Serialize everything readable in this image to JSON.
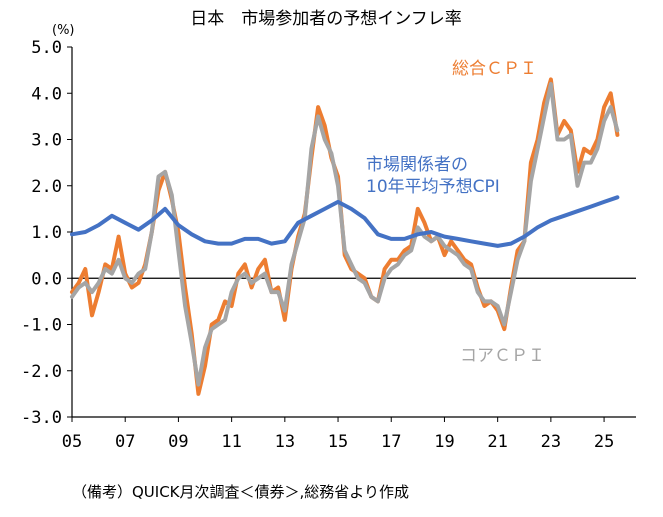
{
  "chart_data": {
    "type": "line",
    "title": "日本　市場参加者の予想インフレ率",
    "unit_label": "(%)",
    "ylim": [
      -3.0,
      5.0
    ],
    "y_ticks": [
      "5.0",
      "4.0",
      "3.0",
      "2.0",
      "1.0",
      "0.0",
      "-1.0",
      "-2.0",
      "-3.0"
    ],
    "x_range": [
      2005,
      2026.2
    ],
    "x_ticks": [
      "05",
      "07",
      "09",
      "11",
      "13",
      "15",
      "17",
      "19",
      "21",
      "23",
      "25"
    ],
    "grid": false,
    "source_note": "（備考）QUICK月次調査＜債券＞,総務省より作成",
    "series": [
      {
        "name": "総合ＣＰＩ",
        "color": "#ED7D31",
        "x": [
          2005.0,
          2005.25,
          2005.5,
          2005.75,
          2006.0,
          2006.25,
          2006.5,
          2006.75,
          2007.0,
          2007.25,
          2007.5,
          2007.75,
          2008.0,
          2008.25,
          2008.5,
          2008.75,
          2009.0,
          2009.25,
          2009.5,
          2009.75,
          2010.0,
          2010.25,
          2010.5,
          2010.75,
          2011.0,
          2011.25,
          2011.5,
          2011.75,
          2012.0,
          2012.25,
          2012.5,
          2012.75,
          2013.0,
          2013.25,
          2013.5,
          2013.75,
          2014.0,
          2014.25,
          2014.5,
          2014.75,
          2015.0,
          2015.25,
          2015.5,
          2015.75,
          2016.0,
          2016.25,
          2016.5,
          2016.75,
          2017.0,
          2017.25,
          2017.5,
          2017.75,
          2018.0,
          2018.25,
          2018.5,
          2018.75,
          2019.0,
          2019.25,
          2019.5,
          2019.75,
          2020.0,
          2020.25,
          2020.5,
          2020.75,
          2021.0,
          2021.25,
          2021.5,
          2021.75,
          2022.0,
          2022.25,
          2022.5,
          2022.75,
          2023.0,
          2023.25,
          2023.5,
          2023.75,
          2024.0,
          2024.25,
          2024.5,
          2024.75,
          2025.0,
          2025.25,
          2025.5
        ],
        "values": [
          -0.3,
          -0.1,
          0.2,
          -0.8,
          -0.3,
          0.3,
          0.2,
          0.9,
          0.1,
          -0.2,
          -0.1,
          0.3,
          1.0,
          1.9,
          2.3,
          1.7,
          1.0,
          -0.2,
          -1.2,
          -2.5,
          -1.9,
          -1.0,
          -0.9,
          -0.5,
          -0.6,
          0.1,
          0.3,
          -0.2,
          0.2,
          0.4,
          -0.3,
          -0.2,
          -0.9,
          0.2,
          0.9,
          1.4,
          2.6,
          3.7,
          3.3,
          2.6,
          2.2,
          0.5,
          0.2,
          0.1,
          0.0,
          -0.4,
          -0.5,
          0.2,
          0.4,
          0.4,
          0.6,
          0.7,
          1.5,
          1.2,
          0.8,
          0.9,
          0.5,
          0.8,
          0.6,
          0.4,
          0.3,
          -0.2,
          -0.6,
          -0.5,
          -0.7,
          -1.1,
          -0.2,
          0.6,
          0.8,
          2.5,
          3.0,
          3.8,
          4.3,
          3.1,
          3.4,
          3.2,
          2.3,
          2.8,
          2.7,
          3.0,
          3.7,
          4.0,
          3.1
        ]
      },
      {
        "name": "コアＣＰＩ",
        "color": "#A5A5A5",
        "x": [
          2005.0,
          2005.25,
          2005.5,
          2005.75,
          2006.0,
          2006.25,
          2006.5,
          2006.75,
          2007.0,
          2007.25,
          2007.5,
          2007.75,
          2008.0,
          2008.25,
          2008.5,
          2008.75,
          2009.0,
          2009.25,
          2009.5,
          2009.75,
          2010.0,
          2010.25,
          2010.5,
          2010.75,
          2011.0,
          2011.25,
          2011.5,
          2011.75,
          2012.0,
          2012.25,
          2012.5,
          2012.75,
          2013.0,
          2013.25,
          2013.5,
          2013.75,
          2014.0,
          2014.25,
          2014.5,
          2014.75,
          2015.0,
          2015.25,
          2015.5,
          2015.75,
          2016.0,
          2016.25,
          2016.5,
          2016.75,
          2017.0,
          2017.25,
          2017.5,
          2017.75,
          2018.0,
          2018.25,
          2018.5,
          2018.75,
          2019.0,
          2019.25,
          2019.5,
          2019.75,
          2020.0,
          2020.25,
          2020.5,
          2020.75,
          2021.0,
          2021.25,
          2021.5,
          2021.75,
          2022.0,
          2022.25,
          2022.5,
          2022.75,
          2023.0,
          2023.25,
          2023.5,
          2023.75,
          2024.0,
          2024.25,
          2024.5,
          2024.75,
          2025.0,
          2025.25,
          2025.5
        ],
        "values": [
          -0.4,
          -0.2,
          -0.1,
          -0.3,
          -0.1,
          0.2,
          0.1,
          0.4,
          0.0,
          -0.1,
          0.1,
          0.2,
          1.0,
          2.2,
          2.3,
          1.8,
          0.6,
          -0.6,
          -1.4,
          -2.3,
          -1.5,
          -1.1,
          -1.0,
          -0.9,
          -0.3,
          0.0,
          0.1,
          -0.1,
          0.0,
          0.1,
          -0.3,
          -0.3,
          -0.7,
          0.3,
          0.8,
          1.3,
          2.8,
          3.5,
          3.0,
          2.7,
          2.0,
          0.6,
          0.3,
          0.0,
          -0.1,
          -0.4,
          -0.5,
          0.0,
          0.2,
          0.3,
          0.5,
          0.6,
          1.1,
          0.9,
          0.8,
          0.9,
          0.7,
          0.6,
          0.5,
          0.3,
          0.2,
          -0.3,
          -0.5,
          -0.5,
          -0.6,
          -1.0,
          -0.3,
          0.4,
          0.8,
          2.1,
          2.8,
          3.5,
          4.2,
          3.0,
          3.0,
          3.1,
          2.0,
          2.5,
          2.5,
          2.8,
          3.4,
          3.7,
          3.2
        ]
      },
      {
        "name": "市場関係者の\n10年平均予想CPI",
        "color": "#4472C4",
        "x": [
          2005.0,
          2005.5,
          2006.0,
          2006.5,
          2007.0,
          2007.5,
          2008.0,
          2008.5,
          2009.0,
          2009.5,
          2010.0,
          2010.5,
          2011.0,
          2011.5,
          2012.0,
          2012.5,
          2013.0,
          2013.5,
          2014.0,
          2014.5,
          2015.0,
          2015.5,
          2016.0,
          2016.5,
          2017.0,
          2017.5,
          2018.0,
          2018.5,
          2019.0,
          2019.5,
          2020.0,
          2020.5,
          2021.0,
          2021.5,
          2022.0,
          2022.5,
          2023.0,
          2023.5,
          2024.0,
          2024.5,
          2025.0,
          2025.5
        ],
        "values": [
          0.95,
          1.0,
          1.15,
          1.35,
          1.2,
          1.05,
          1.25,
          1.5,
          1.15,
          0.95,
          0.8,
          0.75,
          0.75,
          0.85,
          0.85,
          0.75,
          0.8,
          1.2,
          1.35,
          1.5,
          1.65,
          1.5,
          1.3,
          0.95,
          0.85,
          0.85,
          0.95,
          1.0,
          0.9,
          0.85,
          0.8,
          0.75,
          0.7,
          0.75,
          0.9,
          1.1,
          1.25,
          1.35,
          1.45,
          1.55,
          1.65,
          1.75
        ]
      }
    ]
  }
}
